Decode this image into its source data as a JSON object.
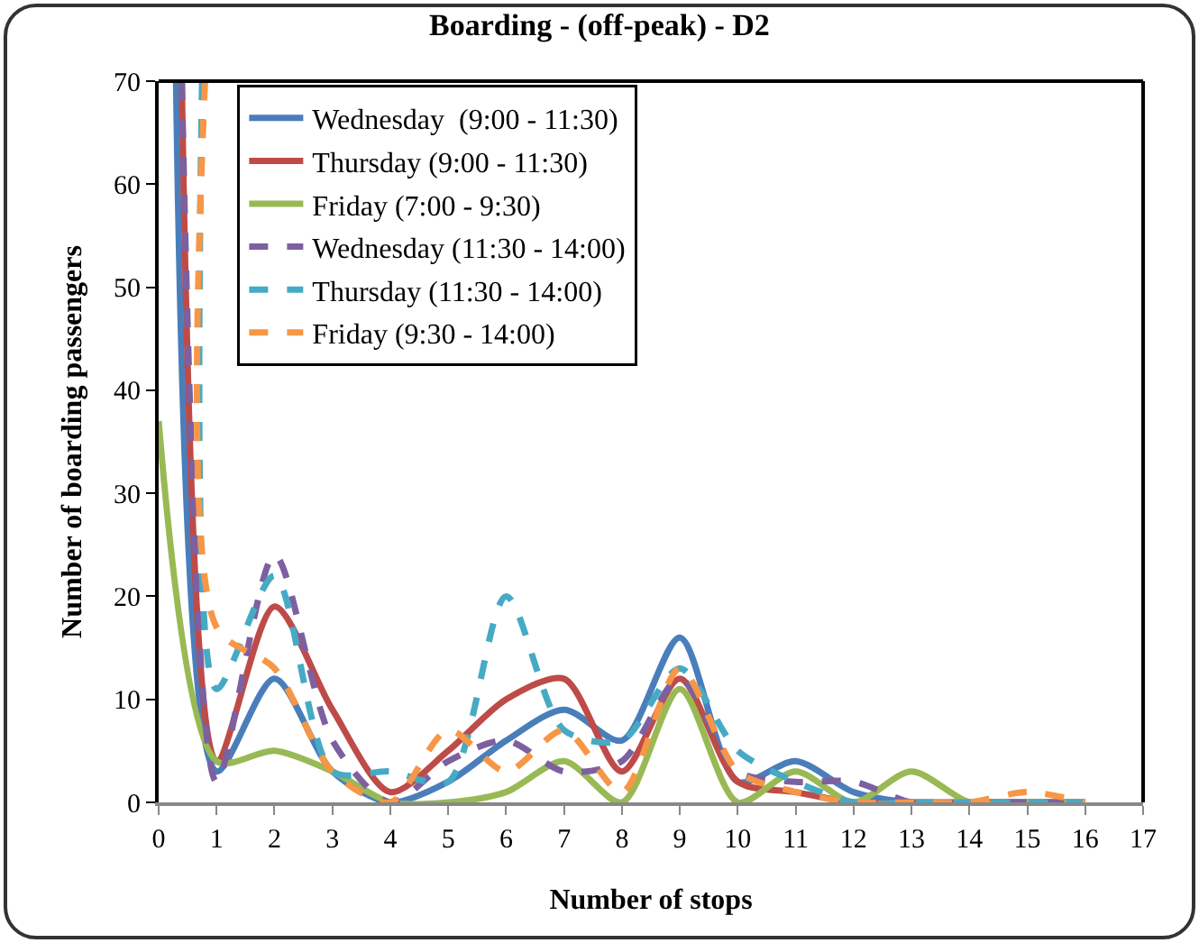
{
  "chart_data": {
    "type": "line",
    "title": "Boarding - (off-peak) - D2",
    "xlabel": "Number of stops",
    "ylabel": "Number of boarding passengers",
    "xlim": [
      0,
      17
    ],
    "xticks": [
      0,
      1,
      2,
      3,
      4,
      5,
      6,
      7,
      8,
      9,
      10,
      11,
      12,
      13,
      14,
      15,
      16,
      17
    ],
    "ylim": [
      0,
      70
    ],
    "yticks": [
      0,
      10,
      20,
      30,
      40,
      50,
      60,
      70
    ],
    "grid": false,
    "legend": "top left",
    "marker": "none",
    "series": [
      {
        "name": "Wednesday  (9:00 - 11:30)",
        "color": "#4a7ebb",
        "line_style": "solid",
        "x": [
          0.3,
          1,
          2,
          3,
          4,
          5,
          6,
          7,
          8,
          9,
          10,
          11,
          12,
          13,
          14,
          15,
          16
        ],
        "values": [
          70,
          3,
          12,
          3,
          0,
          2,
          6,
          9,
          6,
          16,
          2,
          4,
          1,
          0,
          0,
          0,
          0
        ]
      },
      {
        "name": "Thursday (9:00 - 11:30)",
        "color": "#be4b48",
        "line_style": "solid",
        "x": [
          0.4,
          1,
          2,
          3,
          4,
          5,
          6,
          7,
          8,
          9,
          10,
          11,
          12,
          13,
          14,
          15,
          16
        ],
        "values": [
          70,
          4,
          19,
          9,
          1,
          5,
          10,
          12,
          3,
          12,
          2,
          1,
          0,
          0,
          0,
          0,
          0
        ]
      },
      {
        "name": "Friday (7:00 - 9:30)",
        "color": "#98b954",
        "line_style": "solid",
        "x": [
          0,
          1,
          2,
          3,
          4,
          5,
          6,
          7,
          8,
          9,
          10,
          11,
          12,
          13,
          14,
          15,
          16
        ],
        "values": [
          37,
          4,
          5,
          3,
          0,
          0,
          1,
          4,
          0,
          11,
          0,
          3,
          0,
          3,
          0,
          0,
          0
        ]
      },
      {
        "name": "Wednesday (11:30 - 14:00)",
        "color": "#7d60a0",
        "line_style": "dashed",
        "x": [
          0.4,
          1,
          2,
          3,
          4,
          5,
          6,
          7,
          8,
          9,
          10,
          11,
          12,
          13,
          14,
          15,
          16
        ],
        "values": [
          70,
          2,
          24,
          6,
          0,
          4,
          6,
          3,
          4,
          12,
          3,
          2,
          2,
          0,
          0,
          0,
          0
        ]
      },
      {
        "name": "Thursday (11:30 - 14:00)",
        "color": "#46aac5",
        "line_style": "dashed",
        "x": [
          0.75,
          1,
          2,
          3,
          4,
          5,
          6,
          7,
          8,
          9,
          10,
          11,
          12,
          13,
          14,
          15,
          16
        ],
        "values": [
          70,
          11,
          22,
          3,
          3,
          2,
          20,
          7,
          6,
          13,
          5,
          2,
          0,
          0,
          0,
          0,
          0
        ]
      },
      {
        "name": "Friday (9:30 - 14:00)",
        "color": "#f79646",
        "line_style": "dashed",
        "x": [
          0.8,
          1,
          2,
          3,
          4,
          5,
          6,
          7,
          8,
          9,
          10,
          11,
          12,
          13,
          14,
          15,
          16
        ],
        "values": [
          70,
          17,
          13,
          3,
          0,
          7,
          3,
          7,
          1,
          13,
          3,
          1,
          0,
          0,
          0,
          1,
          0
        ]
      }
    ]
  }
}
